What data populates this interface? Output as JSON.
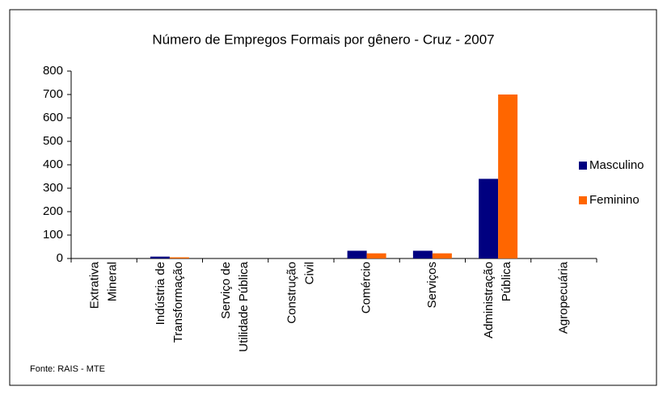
{
  "chart_data": {
    "type": "bar",
    "title": "Número de Empregos Formais por gênero - Cruz - 2007",
    "categories": [
      [
        "Extrativa",
        "Mineral"
      ],
      [
        "Indústria de",
        "Transformação"
      ],
      [
        "Serviço de",
        "Utilidade Pública"
      ],
      [
        "Construção",
        "Civil"
      ],
      [
        "Comércio"
      ],
      [
        "Serviços"
      ],
      [
        "Administração",
        "Pública"
      ],
      [
        "Agropecuária"
      ]
    ],
    "series": [
      {
        "name": "Masculino",
        "color": "#000080",
        "values": [
          0,
          8,
          0,
          0,
          33,
          33,
          340,
          0
        ]
      },
      {
        "name": "Feminino",
        "color": "#ff6600",
        "values": [
          0,
          5,
          0,
          0,
          22,
          22,
          700,
          0
        ]
      }
    ],
    "ylim": [
      0,
      800
    ],
    "yticks": [
      0,
      100,
      200,
      300,
      400,
      500,
      600,
      700,
      800
    ],
    "grid": false,
    "legend": "right",
    "source": "Fonte: RAIS - MTE"
  }
}
